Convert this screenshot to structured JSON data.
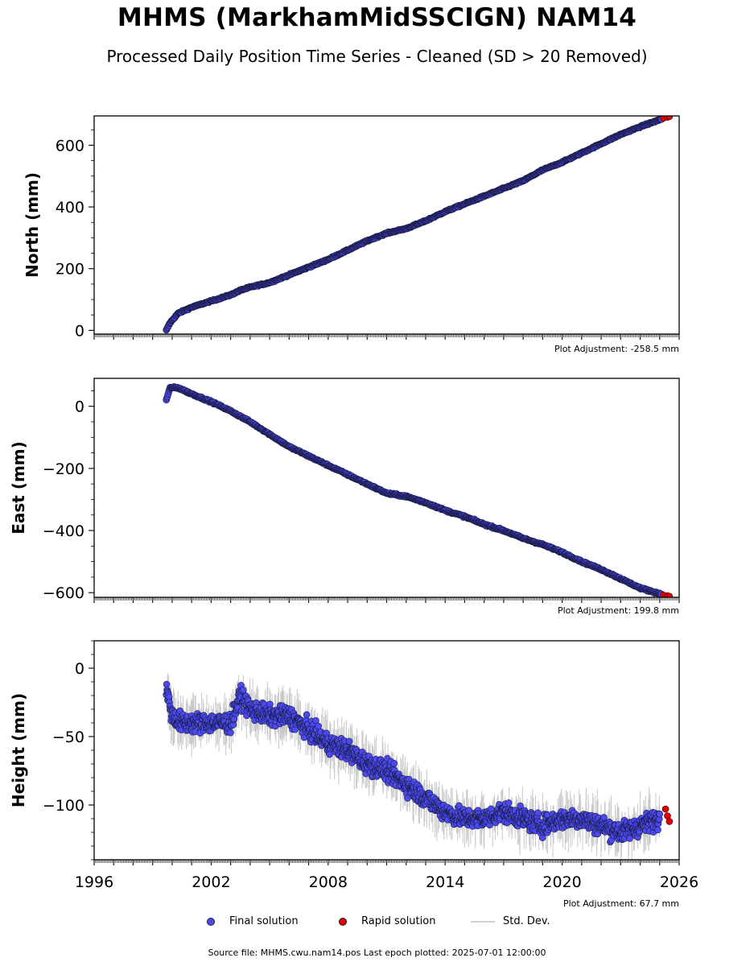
{
  "title": "MHMS (MarkhamMidSSCIGN) NAM14",
  "subtitle": "Processed Daily Position Time Series - Cleaned (SD > 20 Removed)",
  "legend": {
    "final": "Final solution",
    "rapid": "Rapid solution",
    "std": "Std. Dev."
  },
  "source_text": "Source file: MHMS.cwu.nam14.pos  Last epoch plotted: 2025-07-01 12:00:00",
  "colors": {
    "final": "#4a4af0",
    "rapid": "#e00000",
    "std": "#c8c8c8"
  },
  "chart_data": [
    {
      "type": "scatter",
      "ylabel": "North (mm)",
      "xlim": [
        1996,
        2026
      ],
      "ylim": [
        -12,
        695
      ],
      "yticks": [
        0,
        200,
        400,
        600
      ],
      "xticks": [],
      "adjustment": "Plot Adjustment: -258.5 mm",
      "series": [
        {
          "name": "Final solution",
          "x": [
            1999.7,
            1999.9,
            2000.3,
            2001,
            2002,
            2003,
            2003.5,
            2004,
            2005,
            2006,
            2007,
            2008,
            2009,
            2010,
            2011,
            2012,
            2013,
            2014,
            2015,
            2016,
            2017,
            2018,
            2019,
            2020,
            2021,
            2022,
            2023,
            2024,
            2025.1
          ],
          "y": [
            0,
            25,
            55,
            75,
            95,
            115,
            130,
            140,
            155,
            180,
            205,
            230,
            260,
            290,
            315,
            330,
            355,
            385,
            410,
            435,
            460,
            485,
            520,
            545,
            575,
            605,
            635,
            660,
            685
          ]
        },
        {
          "name": "Rapid solution",
          "x": [
            2025.2,
            2025.4,
            2025.5
          ],
          "y": [
            688,
            691,
            693
          ]
        }
      ]
    },
    {
      "type": "scatter",
      "ylabel": "East (mm)",
      "xlim": [
        1996,
        2026
      ],
      "ylim": [
        -615,
        90
      ],
      "yticks": [
        0,
        -200,
        -400,
        -600
      ],
      "xticks": [],
      "adjustment": "Plot Adjustment: 199.8 mm",
      "series": [
        {
          "name": "Final solution",
          "x": [
            1999.7,
            1999.9,
            2000.3,
            2001,
            2002,
            2003,
            2004,
            2005,
            2006,
            2007,
            2008,
            2009,
            2010,
            2011,
            2012,
            2013,
            2014,
            2015,
            2016,
            2017,
            2018,
            2019,
            2020,
            2021,
            2022,
            2023,
            2024,
            2025.1
          ],
          "y": [
            20,
            60,
            60,
            40,
            15,
            -15,
            -50,
            -90,
            -130,
            -160,
            -190,
            -220,
            -250,
            -280,
            -290,
            -310,
            -335,
            -355,
            -380,
            -400,
            -425,
            -445,
            -470,
            -500,
            -525,
            -555,
            -585,
            -605
          ]
        },
        {
          "name": "Rapid solution",
          "x": [
            2025.2,
            2025.4,
            2025.5
          ],
          "y": [
            -608,
            -610,
            -612
          ]
        }
      ]
    },
    {
      "type": "scatter",
      "ylabel": "Height (mm)",
      "xlim": [
        1996,
        2026
      ],
      "ylim": [
        -140,
        20
      ],
      "yticks": [
        0,
        -50,
        -100
      ],
      "xticks": [
        "1996",
        "2002",
        "2008",
        "2014",
        "2020",
        "2026"
      ],
      "adjustment": "Plot Adjustment: 67.7 mm",
      "series": [
        {
          "name": "Final solution",
          "x": [
            1999.7,
            2000,
            2000.5,
            2001,
            2002,
            2003,
            2003.5,
            2004,
            2005,
            2006,
            2007,
            2008,
            2009,
            2010,
            2011,
            2012,
            2013,
            2014,
            2015,
            2016,
            2017,
            2018,
            2019,
            2020,
            2021,
            2022,
            2023,
            2024,
            2025
          ],
          "y": [
            -15,
            -35,
            -40,
            -40,
            -40,
            -40,
            -20,
            -30,
            -35,
            -35,
            -45,
            -55,
            -60,
            -70,
            -75,
            -85,
            -95,
            -105,
            -110,
            -110,
            -105,
            -110,
            -115,
            -110,
            -110,
            -115,
            -120,
            -115,
            -110
          ]
        },
        {
          "name": "Rapid solution",
          "x": [
            2025.3,
            2025.4,
            2025.5
          ],
          "y": [
            -103,
            -108,
            -112
          ]
        }
      ]
    }
  ]
}
